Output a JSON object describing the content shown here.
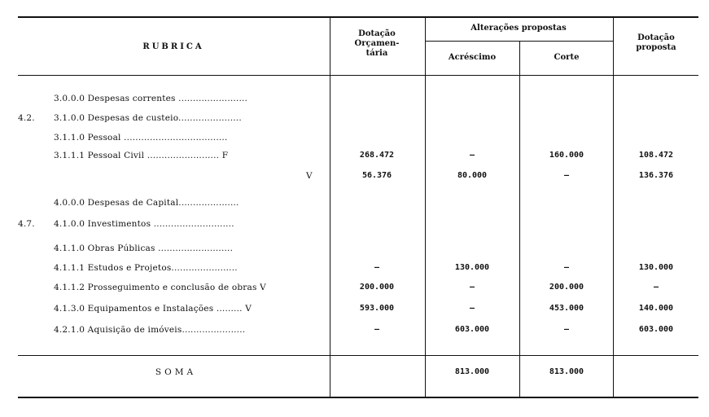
{
  "header": {
    "rubrica": "RUBRICA",
    "dotacao_orcamentaria": [
      "Dotação",
      "Orçamen-",
      "tária"
    ],
    "alteracoes_propostas": "Alterações propostas",
    "acrescimo": "Acréscimo",
    "corte": "Corte",
    "dotacao_proposta": [
      "Dotação",
      "proposta"
    ]
  },
  "rows": [
    {
      "prefix": "",
      "label": "3.0.0.0 Despesas correntes ........................",
      "dotacao": "",
      "acrescimo": "",
      "corte": "",
      "proposta": ""
    },
    {
      "prefix": "4.2.",
      "label": "3.1.0.0 Despesas de custeio......................",
      "dotacao": "",
      "acrescimo": "",
      "corte": "",
      "proposta": ""
    },
    {
      "prefix": "",
      "label": "3.1.1.0 Pessoal ....................................",
      "dotacao": "",
      "acrescimo": "",
      "corte": "",
      "proposta": ""
    },
    {
      "prefix": "",
      "label": "3.1.1.1 Pessoal Civil ......................... F",
      "dotacao": "268.472",
      "acrescimo": "—",
      "corte": "160.000",
      "proposta": "108.472"
    },
    {
      "prefix": "",
      "label": "V",
      "dotacao": "56.376",
      "acrescimo": "80.000",
      "corte": "—",
      "proposta": "136.376"
    },
    {
      "prefix": "",
      "label": "4.0.0.0 Despesas de Capital.....................",
      "dotacao": "",
      "acrescimo": "",
      "corte": "",
      "proposta": ""
    },
    {
      "prefix": "4.7.",
      "label": "4.1.0.0 Investimentos ............................",
      "dotacao": "",
      "acrescimo": "",
      "corte": "",
      "proposta": ""
    },
    {
      "prefix": "",
      "label": "4.1.1.0 Obras Públicas ..........................",
      "dotacao": "",
      "acrescimo": "",
      "corte": "",
      "proposta": ""
    },
    {
      "prefix": "",
      "label": "4.1.1.1 Estudos e Projetos.......................",
      "dotacao": "—",
      "acrescimo": "130.000",
      "corte": "—",
      "proposta": "130.000"
    },
    {
      "prefix": "",
      "label": "4.1.1.2 Prosseguimento e conclusão de obras V",
      "dotacao": "200.000",
      "acrescimo": "—",
      "corte": "200.000",
      "proposta": "—"
    },
    {
      "prefix": "",
      "label": "4.1.3.0 Equipamentos e Instalações ......... V",
      "dotacao": "593.000",
      "acrescimo": "—",
      "corte": "453.000",
      "proposta": "140.000"
    },
    {
      "prefix": "",
      "label": "4.2.1.0 Aquisição de imóveis......................",
      "dotacao": "—",
      "acrescimo": "603.000",
      "corte": "—",
      "proposta": "603.000"
    }
  ],
  "total": {
    "label": "SOMA",
    "dotacao": "",
    "acrescimo": "813.000",
    "corte": "813.000",
    "proposta": ""
  }
}
